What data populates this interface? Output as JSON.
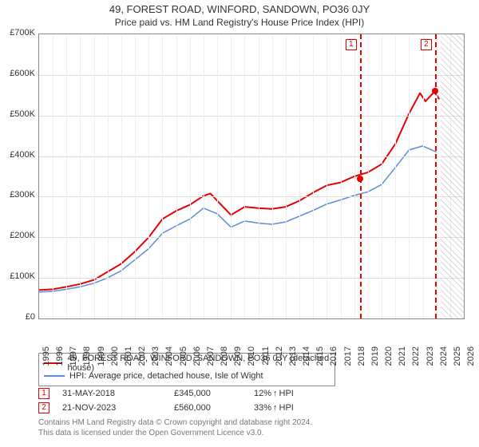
{
  "title": "49, FOREST ROAD, WINFORD, SANDOWN, PO36 0JY",
  "subtitle": "Price paid vs. HM Land Registry's House Price Index (HPI)",
  "chart": {
    "type": "line",
    "background_color": "#ffffff",
    "grid_color": "#dddddd",
    "axis_color": "#888888",
    "y": {
      "min": 0,
      "max": 700000,
      "step": 100000,
      "prefix": "£",
      "suffix": "K",
      "label_fontsize": 11
    },
    "x": {
      "min": 1995,
      "max": 2026,
      "step": 1,
      "label_fontsize": 11,
      "rotate_deg": -90
    },
    "series": [
      {
        "id": "price_paid",
        "label": "49, FOREST ROAD, WINFORD, SANDOWN, PO36 0JY (detached house)",
        "color": "#e60000",
        "line_width": 2,
        "points": [
          [
            1995,
            70000
          ],
          [
            1996,
            72000
          ],
          [
            1997,
            78000
          ],
          [
            1998,
            85000
          ],
          [
            1999,
            95000
          ],
          [
            2000,
            115000
          ],
          [
            2001,
            135000
          ],
          [
            2002,
            165000
          ],
          [
            2003,
            200000
          ],
          [
            2004,
            245000
          ],
          [
            2005,
            265000
          ],
          [
            2006,
            280000
          ],
          [
            2007,
            302000
          ],
          [
            2007.5,
            308000
          ],
          [
            2008,
            290000
          ],
          [
            2009,
            255000
          ],
          [
            2010,
            275000
          ],
          [
            2011,
            272000
          ],
          [
            2012,
            270000
          ],
          [
            2013,
            275000
          ],
          [
            2014,
            290000
          ],
          [
            2015,
            310000
          ],
          [
            2016,
            328000
          ],
          [
            2017,
            335000
          ],
          [
            2018,
            350000
          ],
          [
            2019,
            360000
          ],
          [
            2020,
            380000
          ],
          [
            2021,
            430000
          ],
          [
            2022,
            505000
          ],
          [
            2022.8,
            555000
          ],
          [
            2023.2,
            535000
          ],
          [
            2023.89,
            560000
          ],
          [
            2024.2,
            540000
          ]
        ]
      },
      {
        "id": "hpi",
        "label": "HPI: Average price, detached house, Isle of Wight",
        "color": "#5b8dd6",
        "line_width": 1.5,
        "points": [
          [
            1995,
            65000
          ],
          [
            1996,
            67000
          ],
          [
            1997,
            72000
          ],
          [
            1998,
            78000
          ],
          [
            1999,
            87000
          ],
          [
            2000,
            100000
          ],
          [
            2001,
            118000
          ],
          [
            2002,
            145000
          ],
          [
            2003,
            172000
          ],
          [
            2004,
            210000
          ],
          [
            2005,
            228000
          ],
          [
            2006,
            245000
          ],
          [
            2007,
            272000
          ],
          [
            2008,
            258000
          ],
          [
            2009,
            225000
          ],
          [
            2010,
            240000
          ],
          [
            2011,
            235000
          ],
          [
            2012,
            232000
          ],
          [
            2013,
            238000
          ],
          [
            2014,
            252000
          ],
          [
            2015,
            266000
          ],
          [
            2016,
            282000
          ],
          [
            2017,
            292000
          ],
          [
            2018,
            303000
          ],
          [
            2019,
            312000
          ],
          [
            2020,
            330000
          ],
          [
            2021,
            372000
          ],
          [
            2022,
            415000
          ],
          [
            2023,
            425000
          ],
          [
            2024,
            410000
          ]
        ]
      }
    ],
    "markers": [
      {
        "n": "1",
        "year": 2018.41,
        "value": 345000,
        "color": "#e60000"
      },
      {
        "n": "2",
        "year": 2023.89,
        "value": 560000,
        "color": "#e60000"
      }
    ],
    "hatch_start_year": 2024.3,
    "hatch_end_year": 2026
  },
  "legend": {
    "items": [
      {
        "color": "#e60000",
        "text": "49, FOREST ROAD, WINFORD, SANDOWN, PO36 0JY (detached house)"
      },
      {
        "color": "#5b8dd6",
        "text": "HPI: Average price, detached house, Isle of Wight"
      }
    ]
  },
  "marker_table": {
    "rows": [
      {
        "n": "1",
        "date": "31-MAY-2018",
        "price": "£345,000",
        "pct": "12%",
        "vs": "HPI"
      },
      {
        "n": "2",
        "date": "21-NOV-2023",
        "price": "£560,000",
        "pct": "33%",
        "vs": "HPI"
      }
    ]
  },
  "footer": {
    "line1": "Contains HM Land Registry data © Crown copyright and database right 2024.",
    "line2": "This data is licensed under the Open Government Licence v3.0."
  }
}
